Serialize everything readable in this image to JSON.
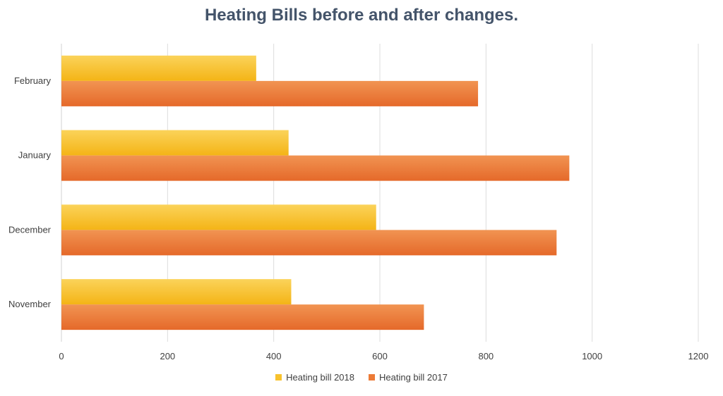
{
  "chart_data": {
    "type": "bar",
    "orientation": "horizontal",
    "title": "Heating Bills before and after changes.",
    "categories": [
      "November",
      "December",
      "January",
      "February"
    ],
    "series": [
      {
        "name": "Heating bill 2018",
        "values": [
          433,
          593,
          428,
          367
        ],
        "color": "#f8c22d"
      },
      {
        "name": "Heating bill 2017",
        "values": [
          683,
          933,
          957,
          785
        ],
        "color": "#ec7b37"
      }
    ],
    "xlim": [
      0,
      1200
    ],
    "xticks": [
      0,
      200,
      400,
      600,
      800,
      1000,
      1200
    ],
    "grid": "vertical",
    "legend": "bottom-center"
  }
}
